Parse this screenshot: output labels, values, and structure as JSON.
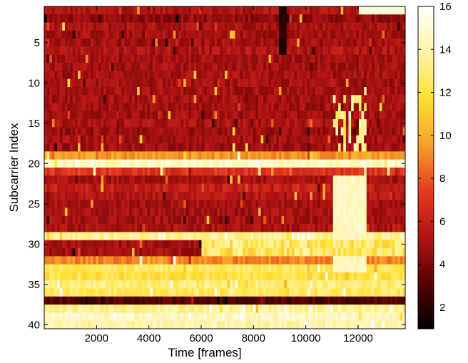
{
  "chart_data": {
    "type": "heatmap",
    "title": "",
    "xlabel": "Time [frames]",
    "ylabel": "Subcarrier Index",
    "xlim": [
      0,
      13800
    ],
    "ylim": [
      0.5,
      40.5
    ],
    "y_reversed": true,
    "xticks": [
      2000,
      4000,
      6000,
      8000,
      10000,
      12000
    ],
    "yticks": [
      5,
      10,
      15,
      20,
      25,
      30,
      35,
      40
    ],
    "colorbar": {
      "range": [
        1,
        16
      ],
      "ticks": [
        2,
        4,
        6,
        8,
        10,
        12,
        14,
        16
      ],
      "colormap": "hot",
      "stops": [
        "#000000",
        "#5a0000",
        "#b01414",
        "#e63b1e",
        "#f7a12a",
        "#ffe033",
        "#fff4a8",
        "#ffffff"
      ]
    },
    "rows_approx": [
      {
        "subcarrier": 1,
        "level": 5.3
      },
      {
        "subcarrier": 2,
        "level": 4.5
      },
      {
        "subcarrier": 3,
        "level": 5.2
      },
      {
        "subcarrier": 4,
        "level": 5.0
      },
      {
        "subcarrier": 5,
        "level": 5.0
      },
      {
        "subcarrier": 6,
        "level": 5.4
      },
      {
        "subcarrier": 7,
        "level": 5.0
      },
      {
        "subcarrier": 8,
        "level": 5.0
      },
      {
        "subcarrier": 9,
        "level": 5.0
      },
      {
        "subcarrier": 10,
        "level": 5.0
      },
      {
        "subcarrier": 11,
        "level": 5.0
      },
      {
        "subcarrier": 12,
        "level": 5.0
      },
      {
        "subcarrier": 13,
        "level": 5.0
      },
      {
        "subcarrier": 14,
        "level": 5.0
      },
      {
        "subcarrier": 15,
        "level": 5.2
      },
      {
        "subcarrier": 16,
        "level": 4.8
      },
      {
        "subcarrier": 17,
        "level": 5.0
      },
      {
        "subcarrier": 18,
        "level": 5.0
      },
      {
        "subcarrier": 19,
        "level": 9.5
      },
      {
        "subcarrier": 20,
        "level": 14.5
      },
      {
        "subcarrier": 21,
        "level": 7.0
      },
      {
        "subcarrier": 22,
        "level": 5.0
      },
      {
        "subcarrier": 23,
        "level": 6.0
      },
      {
        "subcarrier": 24,
        "level": 5.5
      },
      {
        "subcarrier": 25,
        "level": 5.0
      },
      {
        "subcarrier": 26,
        "level": 5.0
      },
      {
        "subcarrier": 27,
        "level": 5.0
      },
      {
        "subcarrier": 28,
        "level": 5.2
      },
      {
        "subcarrier": 29,
        "level": 13.5
      },
      {
        "subcarrier": 30,
        "level": 5.0
      },
      {
        "subcarrier": 31,
        "level": 5.0
      },
      {
        "subcarrier": 32,
        "level": 9.0
      },
      {
        "subcarrier": 33,
        "level": 12.5
      },
      {
        "subcarrier": 34,
        "level": 12.0
      },
      {
        "subcarrier": 35,
        "level": 13.0
      },
      {
        "subcarrier": 36,
        "level": 12.5
      },
      {
        "subcarrier": 37,
        "level": 3.0
      },
      {
        "subcarrier": 38,
        "level": 13.5
      },
      {
        "subcarrier": 39,
        "level": 14.5
      },
      {
        "subcarrier": 40,
        "level": 14.0
      }
    ]
  }
}
